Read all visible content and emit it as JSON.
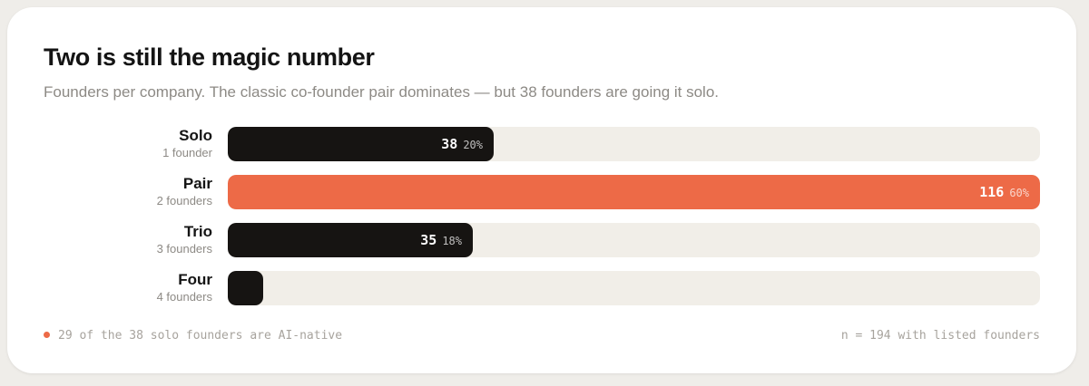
{
  "colors": {
    "accent": "#ed6a47",
    "bar_default": "#161412",
    "track": "#f1eee8"
  },
  "chart_data": {
    "type": "bar",
    "orientation": "horizontal",
    "title": "Two is still the magic number",
    "subtitle": "Founders per company. The classic co-founder pair dominates — but 38 founders are going it solo.",
    "xlim": [
      0,
      116
    ],
    "grid": false,
    "categories": [
      "Solo",
      "Pair",
      "Trio",
      "Four"
    ],
    "bars": [
      {
        "label": "Solo",
        "sublabel": "1 founder",
        "value": 38,
        "value_label": "38",
        "pct_label": "20%",
        "highlight": false
      },
      {
        "label": "Pair",
        "sublabel": "2 founders",
        "value": 116,
        "value_label": "116",
        "pct_label": "60%",
        "highlight": true
      },
      {
        "label": "Trio",
        "sublabel": "3 founders",
        "value": 35,
        "value_label": "35",
        "pct_label": "18%",
        "highlight": false
      },
      {
        "label": "Four",
        "sublabel": "4 founders",
        "value": 5,
        "value_label": "",
        "pct_label": "",
        "highlight": false
      }
    ],
    "footnote": "29 of the 38 solo founders are AI-native",
    "sample_note": "n = 194 with listed founders"
  }
}
